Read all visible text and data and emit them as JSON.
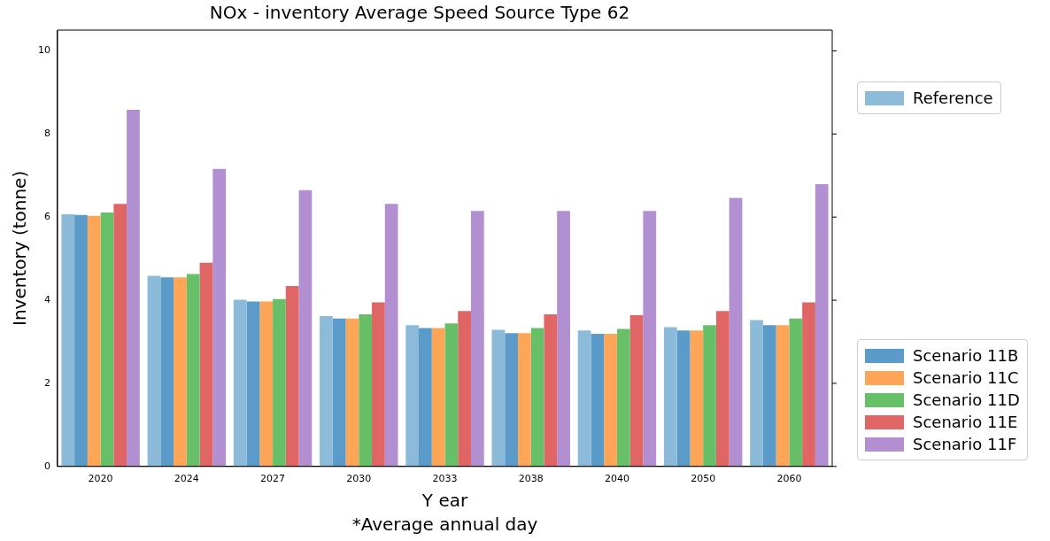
{
  "chart_data": {
    "type": "bar",
    "title": "NOx - inventory Average Speed Source Type 62",
    "xlabel": "Y ear",
    "ylabel": "Inventory (tonne)",
    "annotations": [
      "*Average annual day"
    ],
    "categories": [
      "2020",
      "2024",
      "2027",
      "2030",
      "2033",
      "2038",
      "2040",
      "2050",
      "2060"
    ],
    "series": [
      {
        "name": "Reference",
        "color": "#8cbbda",
        "values": [
          6.07,
          4.59,
          4.01,
          3.62,
          3.4,
          3.29,
          3.27,
          3.35,
          3.52
        ]
      },
      {
        "name": "Scenario 11B",
        "color": "#5b9bc9",
        "values": [
          6.05,
          4.55,
          3.97,
          3.56,
          3.33,
          3.21,
          3.19,
          3.27,
          3.4
        ]
      },
      {
        "name": "Scenario 11C",
        "color": "#fda657",
        "values": [
          6.03,
          4.55,
          3.97,
          3.56,
          3.33,
          3.21,
          3.19,
          3.27,
          3.4
        ]
      },
      {
        "name": "Scenario 11D",
        "color": "#67bf67",
        "values": [
          6.11,
          4.63,
          4.03,
          3.66,
          3.44,
          3.33,
          3.31,
          3.4,
          3.56
        ]
      },
      {
        "name": "Scenario 11E",
        "color": "#e06666",
        "values": [
          6.32,
          4.9,
          4.34,
          3.95,
          3.74,
          3.66,
          3.64,
          3.74,
          3.95
        ]
      },
      {
        "name": "Scenario 11F",
        "color": "#b28fd0",
        "values": [
          8.58,
          7.16,
          6.65,
          6.32,
          6.15,
          6.15,
          6.15,
          6.46,
          6.79
        ]
      }
    ],
    "ylim": [
      0,
      10.5
    ],
    "yticks": [
      0,
      2,
      4,
      6,
      8,
      10
    ],
    "grid": false,
    "legend": "right"
  }
}
